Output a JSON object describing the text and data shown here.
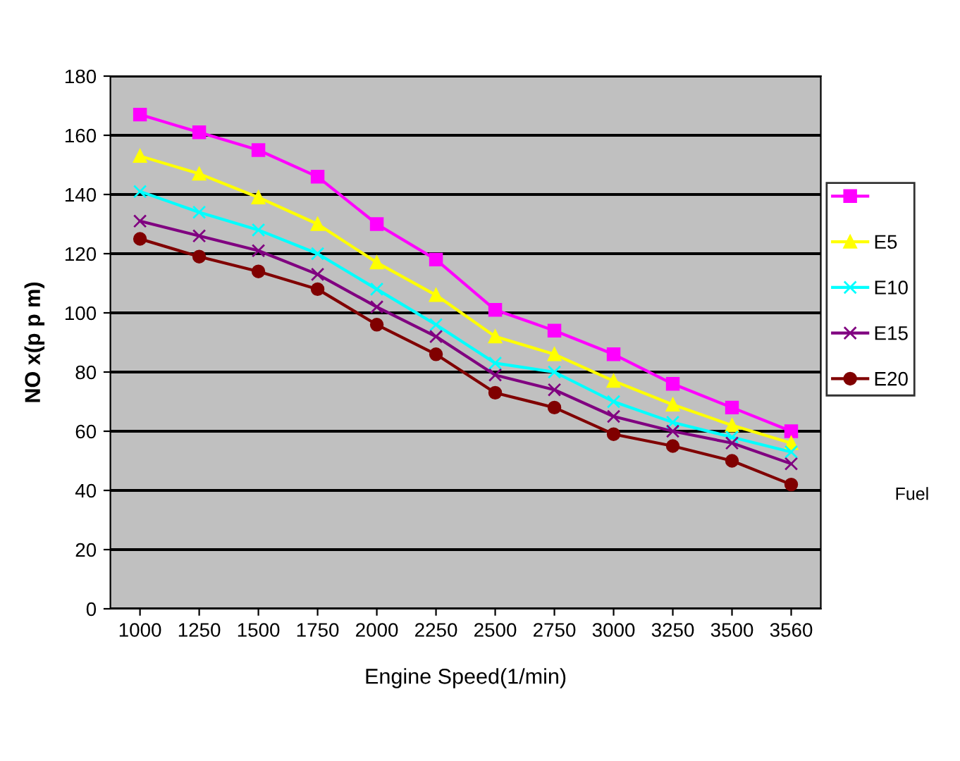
{
  "chart_data": {
    "type": "line",
    "xlabel": "Engine Speed(1/min)",
    "ylabel": "NO x(p p m)",
    "categories": [
      "1000",
      "1250",
      "1500",
      "1750",
      "2000",
      "2250",
      "2500",
      "2750",
      "3000",
      "3250",
      "3500",
      "3560"
    ],
    "series": [
      {
        "color": "#ff00ff",
        "marker": "square",
        "values": [
          167,
          161,
          155,
          146,
          130,
          118,
          101,
          94,
          86,
          76,
          68,
          60
        ]
      },
      {
        "name": "E5",
        "color": "#ffff00",
        "marker": "triangle",
        "values": [
          153,
          147,
          139,
          130,
          117,
          106,
          92,
          86,
          77,
          69,
          62,
          56
        ]
      },
      {
        "name": "E10",
        "color": "#00ffff",
        "marker": "cross",
        "values": [
          141,
          134,
          128,
          120,
          108,
          96,
          83,
          80,
          70,
          63,
          58,
          53
        ]
      },
      {
        "name": "E15",
        "color": "#800080",
        "marker": "cross",
        "values": [
          131,
          126,
          121,
          113,
          102,
          92,
          79,
          74,
          65,
          60,
          56,
          49
        ]
      },
      {
        "name": "E20",
        "color": "#800000",
        "marker": "circle",
        "values": [
          125,
          119,
          114,
          108,
          96,
          86,
          73,
          68,
          59,
          55,
          50,
          42
        ]
      }
    ],
    "ylim": [
      0,
      180
    ],
    "yticks": [
      0,
      20,
      40,
      60,
      80,
      100,
      120,
      140,
      160,
      180
    ],
    "grid": "y",
    "legend": "right",
    "annotations": [
      "Fuel"
    ]
  }
}
